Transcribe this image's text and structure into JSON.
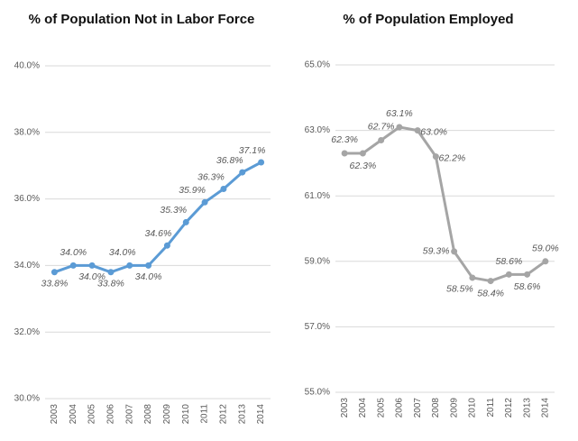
{
  "chart_data": [
    {
      "type": "line",
      "title": "% of Population Not in Labor Force",
      "categories": [
        "2003",
        "2004",
        "2005",
        "2006",
        "2007",
        "2008",
        "2009",
        "2010",
        "2011",
        "2012",
        "2013",
        "2014"
      ],
      "values": [
        33.8,
        34.0,
        34.0,
        33.8,
        34.0,
        34.0,
        34.6,
        35.3,
        35.9,
        36.3,
        36.8,
        37.1
      ],
      "value_labels": [
        "33.8%",
        "34.0%",
        "34.0%",
        "33.8%",
        "34.0%",
        "34.0%",
        "34.6%",
        "35.3%",
        "35.9%",
        "36.3%",
        "36.8%",
        "37.1%"
      ],
      "color": "#5b9bd5",
      "ylim": [
        30,
        40
      ],
      "yticks": [
        {
          "value": 30,
          "label": "30.0%"
        },
        {
          "value": 32,
          "label": "32.0%"
        },
        {
          "value": 34,
          "label": "34.0%"
        },
        {
          "value": 36,
          "label": "36.0%"
        },
        {
          "value": 38,
          "label": "38.0%"
        },
        {
          "value": 40,
          "label": "40.0%"
        }
      ],
      "grid": true
    },
    {
      "type": "line",
      "title": "% of Population Employed",
      "categories": [
        "2003",
        "2004",
        "2005",
        "2006",
        "2007",
        "2008",
        "2009",
        "2010",
        "2011",
        "2012",
        "2013",
        "2014"
      ],
      "values": [
        62.3,
        62.3,
        62.7,
        63.1,
        63.0,
        62.2,
        59.3,
        58.5,
        58.4,
        58.6,
        58.6,
        59.0
      ],
      "value_labels": [
        "62.3%",
        "62.3%",
        "62.7%",
        "63.1%",
        "63.0%",
        "62.2%",
        "59.3%",
        "58.5%",
        "58.4%",
        "58.6%",
        "58.6%",
        "59.0%"
      ],
      "color": "#a5a5a5",
      "ylim": [
        55,
        65
      ],
      "yticks": [
        {
          "value": 55,
          "label": "55.0%"
        },
        {
          "value": 57,
          "label": "57.0%"
        },
        {
          "value": 59,
          "label": "59.0%"
        },
        {
          "value": 61,
          "label": "61.0%"
        },
        {
          "value": 63,
          "label": "63.0%"
        },
        {
          "value": 65,
          "label": "65.0%"
        }
      ],
      "grid": true
    }
  ]
}
